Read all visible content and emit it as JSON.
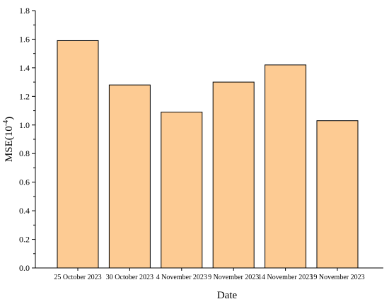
{
  "chart_data": {
    "type": "bar",
    "categories": [
      "25 October 2023",
      "30 October 2023",
      "4 November 2023",
      "9 November 2023",
      "14 November 2023",
      "19 November 2023"
    ],
    "values": [
      1.59,
      1.28,
      1.09,
      1.3,
      1.42,
      1.03
    ],
    "xlabel": "Date",
    "ylabel_base": "MSE(10",
    "ylabel_exponent": "-4",
    "ylabel_close": ")",
    "ylim": [
      0,
      1.8
    ],
    "yticks": [
      "0.0",
      "0.2",
      "0.4",
      "0.6",
      "0.8",
      "1.0",
      "1.2",
      "1.4",
      "1.6",
      "1.8"
    ],
    "grid": false,
    "bar_color": "#fdcb93",
    "bar_edge_color": "#000000"
  }
}
